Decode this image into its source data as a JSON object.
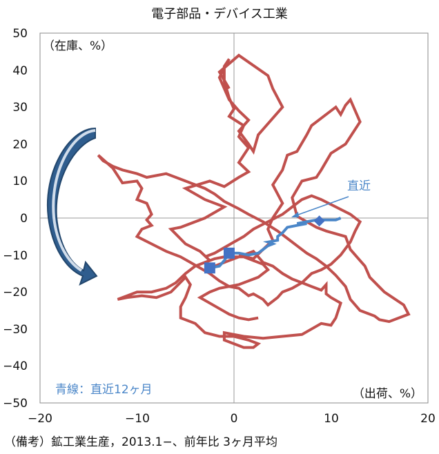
{
  "chart_data": {
    "type": "scatter",
    "title": "電子部品・デバイス工業",
    "xlabel": "（出荷、%）",
    "ylabel": "（在庫、%）",
    "xlim": [
      -20,
      20
    ],
    "ylim": [
      -50,
      50
    ],
    "x_ticks": [
      "−20",
      "−10",
      "0",
      "10",
      "20"
    ],
    "y_ticks": [
      "50",
      "40",
      "30",
      "20",
      "10",
      "0",
      "−10",
      "−20",
      "−30",
      "−40",
      "−50"
    ],
    "grid": false,
    "series": [
      {
        "color": "#c0504d",
        "style": "line",
        "points": [
          [
            -2.5,
            -11.5
          ],
          [
            -3.5,
            -9
          ],
          [
            -5,
            -7
          ],
          [
            -6.5,
            -3
          ],
          [
            -5.5,
            -2.5
          ],
          [
            -3,
            0
          ],
          [
            -1,
            3
          ],
          [
            -3,
            5
          ],
          [
            -5,
            8
          ],
          [
            -2.5,
            10
          ],
          [
            -1,
            8.5
          ],
          [
            0.5,
            11
          ],
          [
            1.5,
            12.5
          ],
          [
            0.5,
            15
          ],
          [
            1.5,
            19
          ],
          [
            0.5,
            22
          ],
          [
            1,
            25
          ],
          [
            -0.5,
            27.5
          ],
          [
            0,
            29.5
          ],
          [
            -0.5,
            32.5
          ],
          [
            -1,
            37
          ],
          [
            -1,
            41
          ],
          [
            -0.5,
            43
          ],
          [
            -1.5,
            38
          ],
          [
            -0.5,
            32
          ],
          [
            0.5,
            29
          ],
          [
            1.5,
            26.5
          ],
          [
            0.5,
            23.5
          ],
          [
            1.5,
            20
          ],
          [
            2,
            18
          ],
          [
            2.5,
            22.5
          ],
          [
            5,
            30
          ],
          [
            4,
            35
          ],
          [
            3.5,
            38.5
          ],
          [
            0.5,
            44
          ],
          [
            -1.5,
            39.5
          ],
          [
            -0.5,
            35
          ]
        ]
      },
      {
        "color": "#c0504d",
        "style": "line",
        "points": [
          [
            0.5,
            -10
          ],
          [
            2,
            -11
          ],
          [
            3,
            -8.5
          ],
          [
            4,
            -6
          ],
          [
            3.5,
            -3
          ],
          [
            4,
            0
          ],
          [
            5,
            4
          ],
          [
            4,
            9
          ],
          [
            5,
            13
          ],
          [
            5.5,
            17
          ],
          [
            6.5,
            18
          ],
          [
            7.5,
            22.5
          ],
          [
            8,
            25
          ],
          [
            9,
            27
          ],
          [
            10.5,
            30
          ],
          [
            11,
            28
          ],
          [
            11.5,
            30.5
          ],
          [
            12,
            32
          ],
          [
            13,
            26
          ],
          [
            11.5,
            20
          ],
          [
            10,
            17.5
          ],
          [
            9,
            13
          ],
          [
            8.5,
            11
          ],
          [
            7,
            10
          ],
          [
            6,
            5.5
          ],
          [
            6.5,
            0.5
          ],
          [
            8.5,
            -2.5
          ],
          [
            9.5,
            -3.5
          ],
          [
            11.5,
            -5
          ],
          [
            12,
            -8.5
          ],
          [
            13.5,
            -13
          ],
          [
            14,
            -16
          ],
          [
            15.5,
            -20
          ],
          [
            17.5,
            -23.5
          ],
          [
            18,
            -26
          ],
          [
            16,
            -28
          ],
          [
            15,
            -27.5
          ],
          [
            14.5,
            -26.5
          ],
          [
            13,
            -25
          ],
          [
            12,
            -22
          ],
          [
            11.5,
            -18.5
          ],
          [
            10.5,
            -15.5
          ],
          [
            9.5,
            -13
          ],
          [
            8.5,
            -11
          ],
          [
            7.5,
            -9.5
          ],
          [
            6.5,
            -7.5
          ],
          [
            5.5,
            -5.5
          ],
          [
            4.5,
            -3.5
          ],
          [
            3,
            -1
          ],
          [
            1.5,
            1
          ],
          [
            0.5,
            2.5
          ],
          [
            -1,
            4.5
          ],
          [
            -2,
            6.5
          ],
          [
            -3,
            8
          ],
          [
            -4,
            9
          ],
          [
            -5,
            10
          ],
          [
            -6,
            11
          ],
          [
            -7,
            12
          ],
          [
            -8,
            11.5
          ],
          [
            -9,
            11
          ],
          [
            -10,
            12
          ],
          [
            -11.5,
            13
          ],
          [
            -12.5,
            14
          ],
          [
            -13.5,
            15.5
          ],
          [
            -14,
            17
          ],
          [
            -12.5,
            13.5
          ],
          [
            -11.5,
            9.5
          ],
          [
            -10,
            10
          ],
          [
            -9.5,
            8
          ],
          [
            -10,
            5
          ],
          [
            -9,
            4
          ],
          [
            -8.5,
            1
          ],
          [
            -9,
            -0.5
          ],
          [
            -8.5,
            -2
          ],
          [
            -9.5,
            -3
          ],
          [
            -10,
            -5
          ],
          [
            -8.5,
            -7
          ],
          [
            -7,
            -9
          ],
          [
            -5.5,
            -10.5
          ],
          [
            -4.5,
            -12
          ],
          [
            -3.5,
            -13.5
          ],
          [
            -2.5,
            -15
          ],
          [
            -1.5,
            -17
          ],
          [
            -0.5,
            -18.5
          ],
          [
            0.5,
            -19
          ],
          [
            1.5,
            -21
          ],
          [
            2,
            -20.5
          ],
          [
            3,
            -22
          ],
          [
            3.5,
            -23.5
          ],
          [
            4.5,
            -21.5
          ],
          [
            5,
            -20
          ],
          [
            6,
            -19
          ],
          [
            7,
            -17.5
          ],
          [
            8,
            -15
          ],
          [
            9,
            -14
          ],
          [
            10,
            -12.5
          ],
          [
            11,
            -10
          ],
          [
            12,
            -6.5
          ],
          [
            12.5,
            -3.5
          ],
          [
            13,
            -1
          ],
          [
            12,
            1
          ],
          [
            10.5,
            3
          ],
          [
            9,
            5
          ],
          [
            8,
            6
          ],
          [
            7,
            5
          ],
          [
            6,
            3
          ],
          [
            5,
            1
          ],
          [
            3.5,
            -1
          ],
          [
            2,
            -3
          ],
          [
            1,
            -5
          ],
          [
            0,
            -6.5
          ],
          [
            -1,
            -8
          ],
          [
            -2,
            -9.5
          ],
          [
            -3,
            -10.5
          ]
        ]
      },
      {
        "color": "#c0504d",
        "style": "line",
        "points": [
          [
            -2,
            -13
          ],
          [
            -0.5,
            -11.5
          ],
          [
            1,
            -10
          ],
          [
            2,
            -9
          ],
          [
            3,
            -12
          ],
          [
            4,
            -13
          ],
          [
            5,
            -15
          ],
          [
            6,
            -16.5
          ],
          [
            7,
            -17.5
          ],
          [
            8,
            -18.5
          ],
          [
            9,
            -19.5
          ],
          [
            9.5,
            -18
          ],
          [
            9.5,
            -20.5
          ],
          [
            10,
            -21.5
          ],
          [
            11,
            -23
          ],
          [
            10.5,
            -27
          ],
          [
            10,
            -29
          ],
          [
            9,
            -28.5
          ],
          [
            7,
            -31.5
          ],
          [
            5,
            -32
          ],
          [
            3,
            -32.5
          ],
          [
            1,
            -32
          ],
          [
            0,
            -31.5
          ],
          [
            -1,
            -31
          ],
          [
            -1,
            -33
          ],
          [
            0,
            -34
          ],
          [
            1,
            -35
          ],
          [
            2,
            -35
          ],
          [
            2.5,
            -34
          ],
          [
            1.5,
            -33
          ],
          [
            0,
            -32
          ],
          [
            -1.5,
            -32
          ],
          [
            -3,
            -31
          ],
          [
            -4,
            -28.5
          ],
          [
            -5.5,
            -27
          ],
          [
            -5.5,
            -24
          ],
          [
            -5,
            -21.5
          ],
          [
            -4.5,
            -18
          ],
          [
            -5,
            -16
          ],
          [
            -6.5,
            -20
          ],
          [
            -8,
            -21.5
          ],
          [
            -9.5,
            -21
          ],
          [
            -11,
            -21.5
          ],
          [
            -12,
            -22
          ],
          [
            -11,
            -21
          ],
          [
            -10,
            -20
          ],
          [
            -8.5,
            -20
          ],
          [
            -7,
            -19
          ],
          [
            -6,
            -17.5
          ],
          [
            -5,
            -15
          ],
          [
            -4,
            -13
          ],
          [
            -3,
            -12
          ],
          [
            -2,
            -11
          ],
          [
            -1,
            -10.5
          ],
          [
            0,
            -10.5
          ],
          [
            1,
            -10.5
          ],
          [
            2,
            -11.5
          ],
          [
            3,
            -12.5
          ],
          [
            3.5,
            -14
          ],
          [
            2.5,
            -16
          ],
          [
            1.5,
            -17
          ],
          [
            0.5,
            -18
          ],
          [
            -0.5,
            -18.5
          ],
          [
            -1.5,
            -19
          ],
          [
            -2.5,
            -20
          ],
          [
            -3.5,
            -21.5
          ],
          [
            -2.5,
            -23
          ],
          [
            -1.5,
            -24.5
          ],
          [
            -0.5,
            -26
          ],
          [
            0.5,
            -27
          ],
          [
            1.5,
            -27.5
          ],
          [
            2.5,
            -27
          ]
        ]
      },
      {
        "color": "#4a86c8",
        "style": "line",
        "points": [
          [
            -2.5,
            -13.5
          ],
          [
            -1.5,
            -13
          ],
          [
            -1,
            -11.5
          ],
          [
            -0.5,
            -9.5
          ],
          [
            0.5,
            -9.5
          ],
          [
            1.5,
            -10
          ],
          [
            2.5,
            -9.5
          ],
          [
            3,
            -8.5
          ],
          [
            3.5,
            -7.5
          ],
          [
            4,
            -7
          ],
          [
            3.5,
            -6.5
          ],
          [
            4.5,
            -6
          ],
          [
            4.5,
            -5
          ],
          [
            5,
            -4
          ],
          [
            5.5,
            -2.5
          ],
          [
            6.5,
            -2
          ],
          [
            7.5,
            -1.5
          ],
          [
            6.5,
            -1.5
          ],
          [
            7.5,
            -1
          ],
          [
            8.5,
            -0.5
          ],
          [
            9.5,
            -0.5
          ],
          [
            10.5,
            -0.5
          ],
          [
            11,
            0
          ]
        ]
      }
    ],
    "markers": [
      {
        "x": -2.5,
        "y": -13.5,
        "shape": "square",
        "color": "#4472c4"
      },
      {
        "x": -0.5,
        "y": -9.5,
        "shape": "square",
        "color": "#4472c4"
      },
      {
        "x": 8.8,
        "y": -0.8,
        "shape": "diamond",
        "color": "#4472c4"
      }
    ],
    "annotations": [
      {
        "text": "直近",
        "x": 13,
        "y": 9
      },
      {
        "text": "青線：直近12ヶ月",
        "x": -18,
        "y": -46
      }
    ]
  },
  "footnote": "（備考）鉱工業生産，2013.1−、前年比 3ヶ月平均",
  "colors": {
    "red_series": "#c0504d",
    "blue_series": "#4a86c8",
    "arrow_fill": "#2f5d8e"
  }
}
